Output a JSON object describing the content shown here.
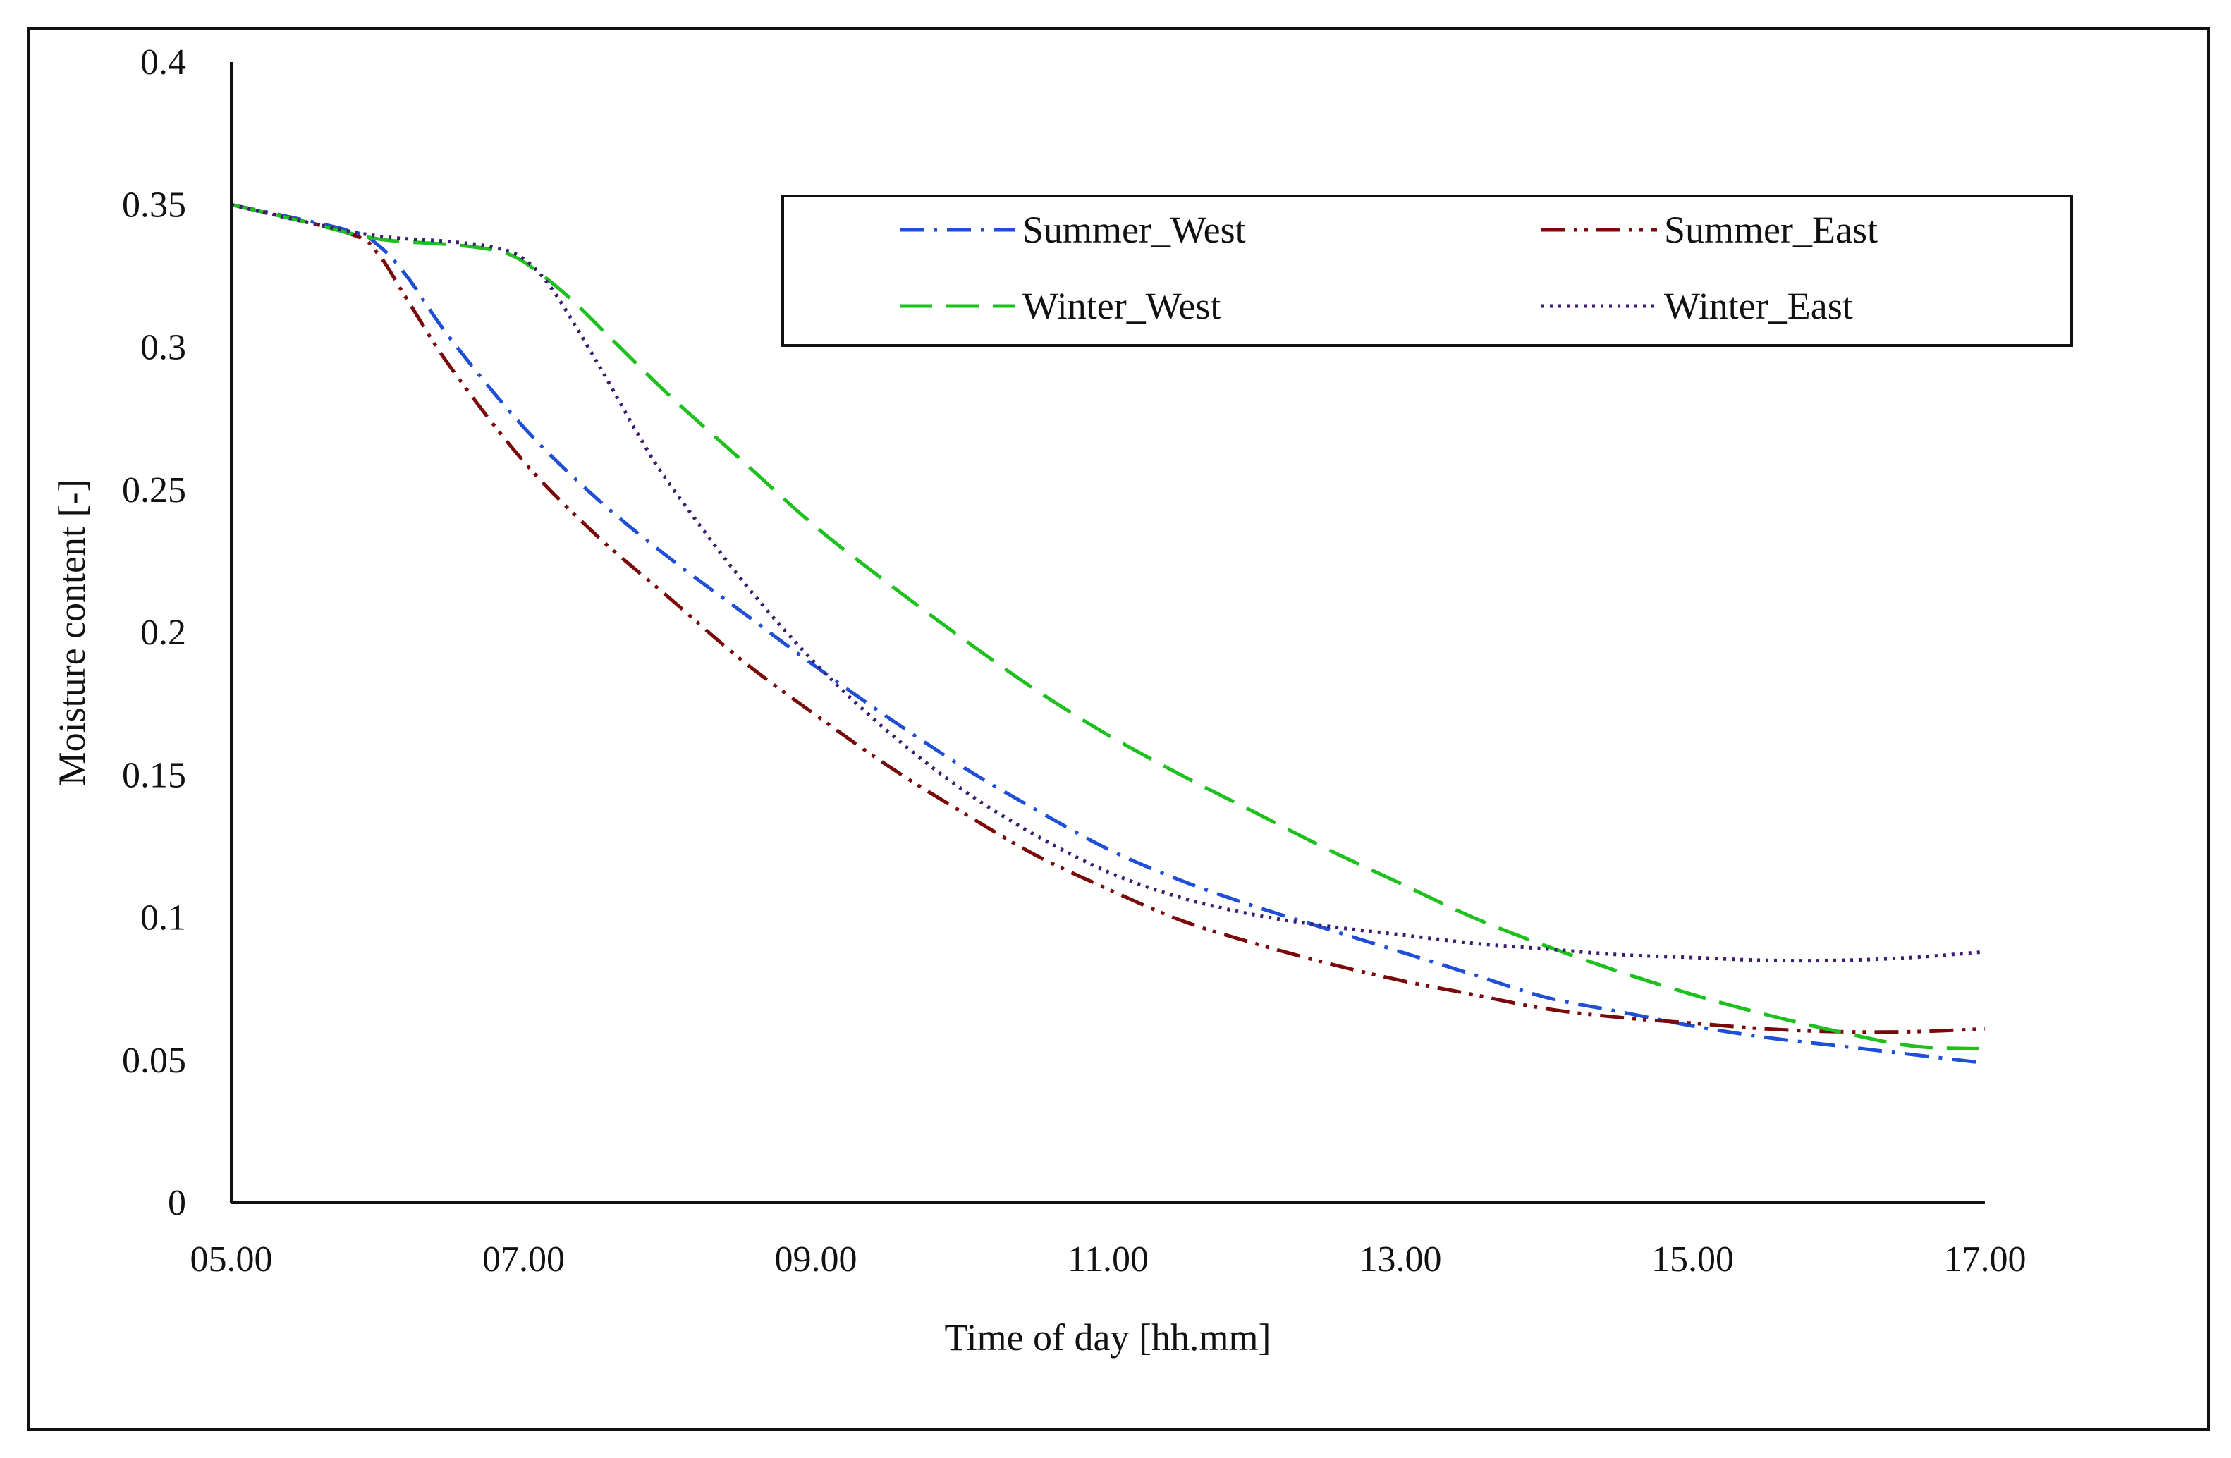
{
  "chart_data": {
    "type": "line",
    "title": "",
    "xlabel": "Time of day [hh.mm]",
    "ylabel": "Moisture content [-]",
    "xlim": [
      5,
      17
    ],
    "ylim": [
      0,
      0.4
    ],
    "x_ticks": [
      {
        "value": 5,
        "label": "05.00"
      },
      {
        "value": 7,
        "label": "07.00"
      },
      {
        "value": 9,
        "label": "09.00"
      },
      {
        "value": 11,
        "label": "11.00"
      },
      {
        "value": 13,
        "label": "13.00"
      },
      {
        "value": 15,
        "label": "15.00"
      },
      {
        "value": 17,
        "label": "17.00"
      }
    ],
    "y_ticks": [
      {
        "value": 0,
        "label": "0"
      },
      {
        "value": 0.05,
        "label": "0.05"
      },
      {
        "value": 0.1,
        "label": "0.1"
      },
      {
        "value": 0.15,
        "label": "0.15"
      },
      {
        "value": 0.2,
        "label": "0.2"
      },
      {
        "value": 0.25,
        "label": "0.25"
      },
      {
        "value": 0.3,
        "label": "0.3"
      },
      {
        "value": 0.35,
        "label": "0.35"
      },
      {
        "value": 0.4,
        "label": "0.4"
      }
    ],
    "grid": false,
    "legend_position": "top-right",
    "series": [
      {
        "name": "Summer_West",
        "color": "#1f4fd6",
        "dash": "dash-dot",
        "points": [
          [
            5.0,
            0.35
          ],
          [
            5.8,
            0.341
          ],
          [
            6.0,
            0.336
          ],
          [
            6.2,
            0.325
          ],
          [
            6.5,
            0.303
          ],
          [
            7.0,
            0.272
          ],
          [
            7.5,
            0.247
          ],
          [
            8.0,
            0.226
          ],
          [
            8.5,
            0.207
          ],
          [
            9.0,
            0.188
          ],
          [
            9.5,
            0.17
          ],
          [
            10.0,
            0.153
          ],
          [
            10.5,
            0.138
          ],
          [
            11.0,
            0.124
          ],
          [
            11.5,
            0.113
          ],
          [
            12.0,
            0.104
          ],
          [
            12.5,
            0.096
          ],
          [
            13.0,
            0.088
          ],
          [
            13.5,
            0.08
          ],
          [
            14.0,
            0.072
          ],
          [
            14.5,
            0.067
          ],
          [
            15.0,
            0.062
          ],
          [
            15.5,
            0.058
          ],
          [
            16.0,
            0.055
          ],
          [
            16.5,
            0.052
          ],
          [
            17.0,
            0.049
          ]
        ]
      },
      {
        "name": "Summer_East",
        "color": "#7a0a0a",
        "dash": "dash-dot-dot",
        "points": [
          [
            5.0,
            0.35
          ],
          [
            5.8,
            0.34
          ],
          [
            6.0,
            0.333
          ],
          [
            6.2,
            0.317
          ],
          [
            6.5,
            0.293
          ],
          [
            7.0,
            0.26
          ],
          [
            7.5,
            0.234
          ],
          [
            8.0,
            0.212
          ],
          [
            8.5,
            0.19
          ],
          [
            9.0,
            0.171
          ],
          [
            9.5,
            0.153
          ],
          [
            10.0,
            0.137
          ],
          [
            10.5,
            0.122
          ],
          [
            11.0,
            0.11
          ],
          [
            11.5,
            0.099
          ],
          [
            12.0,
            0.091
          ],
          [
            12.5,
            0.084
          ],
          [
            13.0,
            0.078
          ],
          [
            13.5,
            0.073
          ],
          [
            14.0,
            0.068
          ],
          [
            14.5,
            0.065
          ],
          [
            15.0,
            0.063
          ],
          [
            15.5,
            0.061
          ],
          [
            16.0,
            0.06
          ],
          [
            16.5,
            0.06
          ],
          [
            17.0,
            0.061
          ]
        ]
      },
      {
        "name": "Winter_West",
        "color": "#1ec01e",
        "dash": "long-dash",
        "points": [
          [
            5.0,
            0.35
          ],
          [
            5.5,
            0.344
          ],
          [
            6.0,
            0.338
          ],
          [
            6.5,
            0.336
          ],
          [
            6.8,
            0.334
          ],
          [
            7.0,
            0.33
          ],
          [
            7.3,
            0.318
          ],
          [
            7.6,
            0.303
          ],
          [
            8.0,
            0.283
          ],
          [
            8.5,
            0.26
          ],
          [
            9.0,
            0.237
          ],
          [
            9.5,
            0.217
          ],
          [
            10.0,
            0.198
          ],
          [
            10.5,
            0.18
          ],
          [
            11.0,
            0.164
          ],
          [
            11.5,
            0.15
          ],
          [
            12.0,
            0.137
          ],
          [
            12.5,
            0.124
          ],
          [
            13.0,
            0.112
          ],
          [
            13.5,
            0.1
          ],
          [
            14.0,
            0.09
          ],
          [
            14.5,
            0.081
          ],
          [
            15.0,
            0.073
          ],
          [
            15.5,
            0.066
          ],
          [
            16.0,
            0.06
          ],
          [
            16.5,
            0.055
          ],
          [
            17.0,
            0.054
          ]
        ]
      },
      {
        "name": "Winter_East",
        "color": "#3a1d6e",
        "dash": "dotted",
        "points": [
          [
            5.0,
            0.35
          ],
          [
            5.5,
            0.344
          ],
          [
            6.0,
            0.339
          ],
          [
            6.5,
            0.337
          ],
          [
            6.8,
            0.335
          ],
          [
            7.0,
            0.331
          ],
          [
            7.2,
            0.32
          ],
          [
            7.5,
            0.295
          ],
          [
            7.8,
            0.268
          ],
          [
            8.0,
            0.252
          ],
          [
            8.5,
            0.218
          ],
          [
            9.0,
            0.189
          ],
          [
            9.5,
            0.165
          ],
          [
            10.0,
            0.145
          ],
          [
            10.5,
            0.129
          ],
          [
            11.0,
            0.116
          ],
          [
            11.5,
            0.107
          ],
          [
            12.0,
            0.101
          ],
          [
            12.5,
            0.097
          ],
          [
            13.0,
            0.094
          ],
          [
            13.5,
            0.091
          ],
          [
            14.0,
            0.089
          ],
          [
            14.5,
            0.087
          ],
          [
            15.0,
            0.086
          ],
          [
            15.5,
            0.085
          ],
          [
            16.0,
            0.085
          ],
          [
            16.5,
            0.086
          ],
          [
            17.0,
            0.088
          ]
        ]
      }
    ]
  }
}
